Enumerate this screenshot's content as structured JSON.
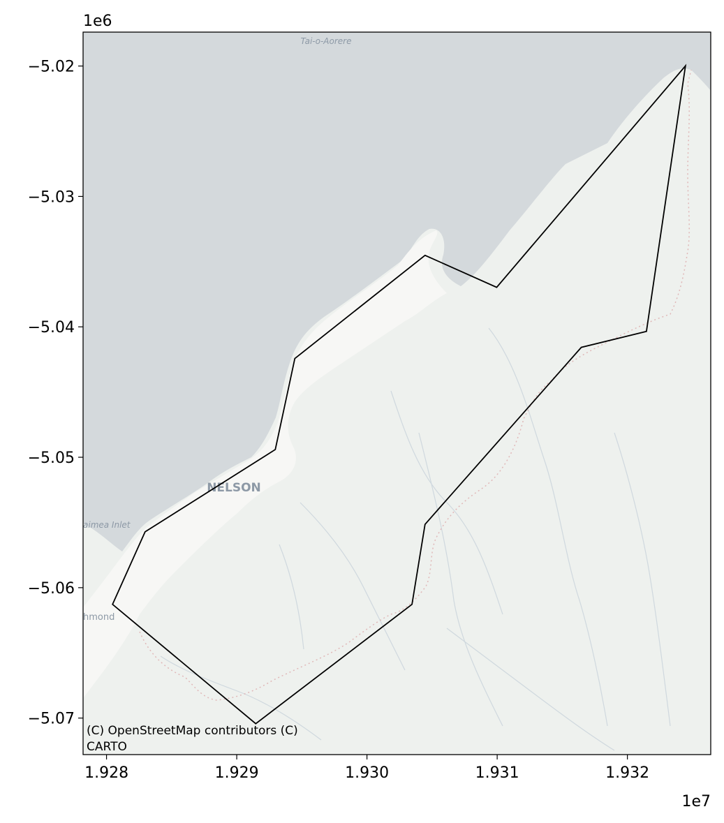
{
  "axes": {
    "x_offset_label": "1e7",
    "y_offset_label": "1e6",
    "x_ticks": [
      {
        "value": 1.928,
        "label": "1.928"
      },
      {
        "value": 1.929,
        "label": "1.929"
      },
      {
        "value": 1.93,
        "label": "1.930"
      },
      {
        "value": 1.931,
        "label": "1.931"
      },
      {
        "value": 1.932,
        "label": "1.932"
      }
    ],
    "y_ticks": [
      {
        "value": -5.02,
        "label": "−5.02"
      },
      {
        "value": -5.03,
        "label": "−5.03"
      },
      {
        "value": -5.04,
        "label": "−5.04"
      },
      {
        "value": -5.05,
        "label": "−5.05"
      },
      {
        "value": -5.06,
        "label": "−5.06"
      },
      {
        "value": -5.07,
        "label": "−5.07"
      }
    ],
    "xlim": [
      1.92782,
      1.93264
    ],
    "ylim": [
      -5.0728,
      -5.0174
    ]
  },
  "map": {
    "labels": {
      "nelson": "NELSON",
      "tai_o_aorere": "Tai-o-Aorere",
      "waimea_inlet": "aimea Inlet",
      "richmond": "hmond"
    },
    "attribution_line1": "(C) OpenStreetMap contributors (C)",
    "attribution_line2": "CARTO",
    "colors": {
      "water": "#d4d9dc",
      "land": "#eef1ee",
      "urban": "#f7f7f5",
      "river": "#cfd8de",
      "boundary": "#e0b8b8",
      "polygon_stroke": "#000000"
    }
  },
  "polygon": [
    [
      1.932446,
      -5.01999
    ],
    [
      1.932146,
      -5.04035
    ],
    [
      1.931646,
      -5.04157
    ],
    [
      1.930446,
      -5.05514
    ],
    [
      1.930346,
      -5.06128
    ],
    [
      1.929146,
      -5.07043
    ],
    [
      1.928046,
      -5.06128
    ],
    [
      1.928296,
      -5.05572
    ],
    [
      1.929296,
      -5.04941
    ],
    [
      1.929446,
      -5.04243
    ],
    [
      1.930446,
      -5.03452
    ],
    [
      1.930996,
      -5.03697
    ],
    [
      1.932446,
      -5.01999
    ]
  ]
}
